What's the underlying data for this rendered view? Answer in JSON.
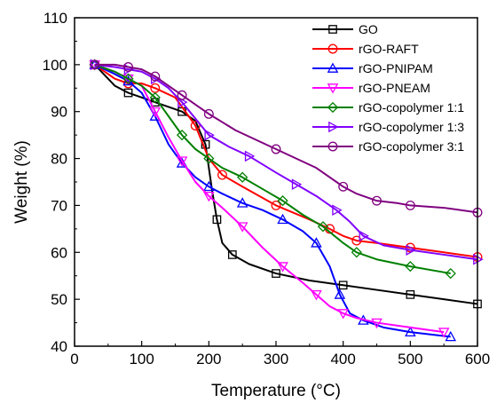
{
  "chart_data": {
    "type": "line",
    "title": "",
    "xlabel": "Temperature (°C)",
    "ylabel": "Weight (%)",
    "xlim": [
      0,
      600
    ],
    "ylim": [
      40,
      110
    ],
    "xticks": [
      0,
      100,
      200,
      300,
      400,
      500,
      600
    ],
    "yticks": [
      40,
      50,
      60,
      70,
      80,
      90,
      100,
      110
    ],
    "grid": false,
    "legend": "top-right",
    "series": [
      {
        "name": "GO",
        "color": "#000000",
        "marker": "square",
        "x": [
          30,
          60,
          80,
          100,
          120,
          140,
          160,
          180,
          195,
          205,
          212,
          220,
          235,
          260,
          300,
          350,
          400,
          450,
          500,
          550,
          600
        ],
        "y": [
          100,
          95.5,
          94,
          93,
          92,
          91,
          90,
          88,
          83,
          73,
          67,
          62,
          59.5,
          57.5,
          55.5,
          54,
          53,
          52,
          51,
          50,
          49
        ]
      },
      {
        "name": "rGO-RAFT",
        "color": "#ff0000",
        "marker": "circle",
        "x": [
          30,
          60,
          80,
          100,
          120,
          150,
          180,
          200,
          220,
          250,
          300,
          350,
          380,
          400,
          420,
          450,
          500,
          550,
          600
        ],
        "y": [
          100,
          97,
          96,
          96,
          95,
          93,
          87,
          80,
          76.5,
          74,
          70,
          67,
          65,
          63.5,
          62.5,
          62,
          61,
          60,
          59
        ]
      },
      {
        "name": "rGO-PNIPAM",
        "color": "#0000ff",
        "marker": "triangle-up",
        "x": [
          30,
          60,
          80,
          100,
          120,
          140,
          160,
          180,
          200,
          220,
          250,
          280,
          310,
          340,
          360,
          380,
          395,
          410,
          430,
          460,
          500,
          530,
          560
        ],
        "y": [
          100,
          98,
          96.5,
          94,
          89,
          83,
          79,
          76,
          74,
          72.5,
          70.5,
          69,
          67,
          64.5,
          62,
          57,
          51,
          47,
          45.5,
          44,
          43,
          42.5,
          42
        ]
      },
      {
        "name": "rGO-PNEAM",
        "color": "#ff00ff",
        "marker": "triangle-down",
        "x": [
          30,
          60,
          80,
          100,
          120,
          140,
          160,
          180,
          200,
          220,
          250,
          280,
          310,
          340,
          360,
          380,
          400,
          420,
          450,
          500,
          550
        ],
        "y": [
          100,
          98.5,
          97,
          95.5,
          90,
          84.5,
          79.5,
          75,
          72,
          69.5,
          65.5,
          61,
          57,
          53.5,
          51,
          48.5,
          47,
          46,
          45,
          44,
          43
        ]
      },
      {
        "name": "rGO-copolymer 1:1",
        "color": "#008000",
        "marker": "diamond",
        "x": [
          30,
          60,
          80,
          100,
          120,
          140,
          160,
          180,
          200,
          220,
          250,
          280,
          310,
          340,
          370,
          400,
          420,
          450,
          500,
          560
        ],
        "y": [
          100,
          98.5,
          97,
          95.5,
          93,
          89,
          85,
          82,
          80,
          78,
          76,
          73.5,
          71,
          68,
          65.5,
          62,
          60,
          58.5,
          57,
          55.5
        ]
      },
      {
        "name": "rGO-copolymer 1:3",
        "color": "#8000ff",
        "marker": "triangle-right",
        "x": [
          30,
          60,
          80,
          100,
          120,
          140,
          160,
          180,
          200,
          230,
          260,
          300,
          330,
          360,
          390,
          410,
          430,
          460,
          500,
          550,
          600
        ],
        "y": [
          100,
          99.5,
          99,
          98.5,
          97,
          95,
          92,
          88.5,
          85,
          82.5,
          80.5,
          77,
          74.5,
          72,
          69,
          66.5,
          63.5,
          61.5,
          60.5,
          59.5,
          58.5
        ]
      },
      {
        "name": "rGO-copolymer 3:1",
        "color": "#800080",
        "marker": "circle",
        "x": [
          30,
          60,
          80,
          100,
          120,
          140,
          160,
          180,
          200,
          240,
          300,
          360,
          400,
          420,
          450,
          480,
          500,
          550,
          600
        ],
        "y": [
          100,
          100,
          99.5,
          99,
          97.5,
          95.5,
          93.5,
          91.5,
          89.5,
          86,
          82,
          78,
          74,
          72.5,
          71,
          70.5,
          70,
          69.5,
          68.5
        ]
      }
    ]
  }
}
